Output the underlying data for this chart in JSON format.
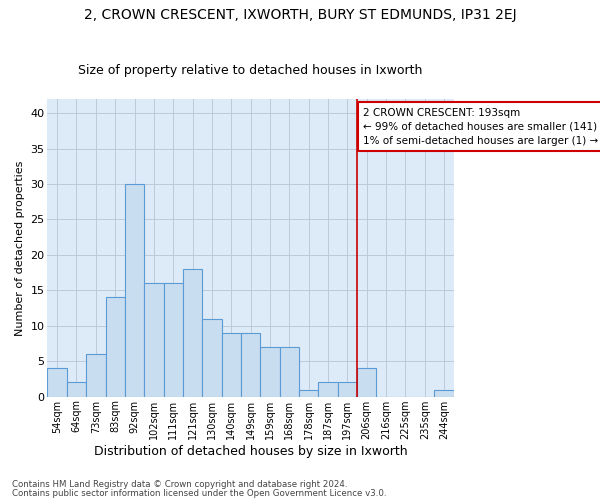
{
  "title": "2, CROWN CRESCENT, IXWORTH, BURY ST EDMUNDS, IP31 2EJ",
  "subtitle": "Size of property relative to detached houses in Ixworth",
  "xlabel": "Distribution of detached houses by size in Ixworth",
  "ylabel": "Number of detached properties",
  "bar_labels": [
    "54sqm",
    "64sqm",
    "73sqm",
    "83sqm",
    "92sqm",
    "102sqm",
    "111sqm",
    "121sqm",
    "130sqm",
    "140sqm",
    "149sqm",
    "159sqm",
    "168sqm",
    "178sqm",
    "187sqm",
    "197sqm",
    "206sqm",
    "216sqm",
    "225sqm",
    "235sqm",
    "244sqm"
  ],
  "bar_heights": [
    4,
    2,
    6,
    14,
    30,
    16,
    16,
    18,
    11,
    9,
    9,
    7,
    7,
    1,
    2,
    2,
    4,
    0,
    0,
    0,
    1
  ],
  "bar_color": "#c8ddf0",
  "bar_edge_color": "#5b9bd5",
  "vline_index": 15,
  "vline_color": "#cc0000",
  "annotation_title": "2 CROWN CRESCENT: 193sqm",
  "annotation_line1": "← 99% of detached houses are smaller (141)",
  "annotation_line2": "1% of semi-detached houses are larger (1) →",
  "annotation_box_color": "#cc0000",
  "ylim": [
    0,
    42
  ],
  "yticks": [
    0,
    5,
    10,
    15,
    20,
    25,
    30,
    35,
    40
  ],
  "bg_color": "#ddeaf7",
  "grid_color": "#c0c8d8",
  "footer1": "Contains HM Land Registry data © Crown copyright and database right 2024.",
  "footer2": "Contains public sector information licensed under the Open Government Licence v3.0."
}
